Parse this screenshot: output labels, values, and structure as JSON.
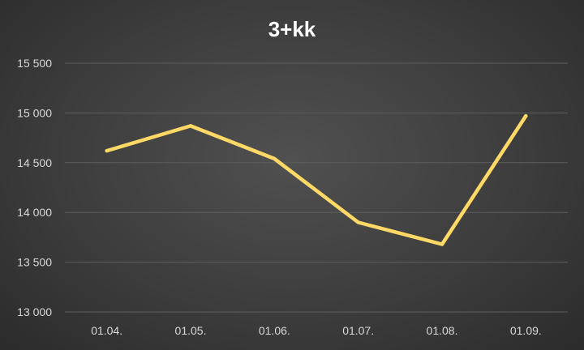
{
  "chart_data": {
    "type": "line",
    "title": "3+kk",
    "xlabel": "",
    "ylabel": "",
    "categories": [
      "01.04.",
      "01.05.",
      "01.06.",
      "01.07.",
      "01.08.",
      "01.09."
    ],
    "series": [
      {
        "values": [
          14620,
          14870,
          14540,
          13900,
          13680,
          14970
        ],
        "color": "#ffd966"
      }
    ],
    "ylim": [
      13000,
      15500
    ],
    "yticks": [
      13000,
      13500,
      14000,
      14500,
      15000,
      15500
    ],
    "ytick_labels": [
      "13 000",
      "13 500",
      "14 000",
      "14 500",
      "15 000",
      "15 500"
    ],
    "grid": true,
    "legend": "none"
  }
}
